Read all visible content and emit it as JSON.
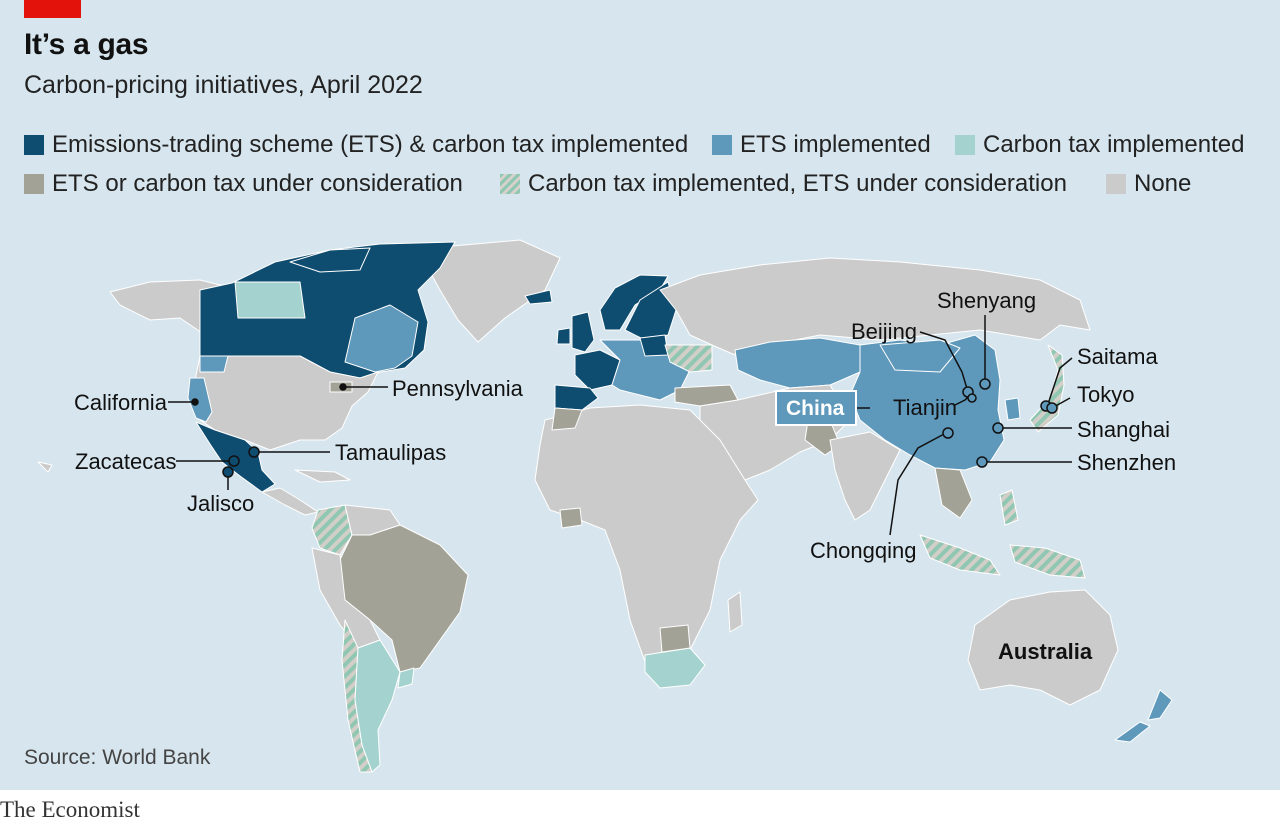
{
  "title": "It’s a gas",
  "subtitle": "Carbon-pricing initiatives, April 2022",
  "colors": {
    "ets_and_tax": "#0e4c70",
    "ets": "#5e98bb",
    "tax": "#a4d3cf",
    "consideration": "#a3a297",
    "tax_ets_consideration_stripe": "#8fc7b3",
    "none": "#cbcbcb",
    "background": "#d7e6ee",
    "accent_red": "#e3120b"
  },
  "legend": [
    {
      "label": "Emissions-trading scheme (ETS) & carbon tax implemented",
      "color": "#0e4c70"
    },
    {
      "label": "ETS implemented",
      "color": "#5e98bb"
    },
    {
      "label": "Carbon tax implemented",
      "color": "#a4d3cf"
    },
    {
      "label": "ETS or carbon tax under consideration",
      "color": "#a3a297"
    },
    {
      "label": "Carbon tax implemented, ETS under consideration",
      "color": "striped"
    },
    {
      "label": "None",
      "color": "#cbcbcb"
    }
  ],
  "labels": {
    "california": "California",
    "pennsylvania": "Pennsylvania",
    "zacatecas": "Zacatecas",
    "tamaulipas": "Tamaulipas",
    "jalisco": "Jalisco",
    "beijing": "Beijing",
    "shenyang": "Shenyang",
    "saitama": "Saitama",
    "tokyo": "Tokyo",
    "china": "China",
    "tianjin": "Tianjin",
    "shanghai": "Shanghai",
    "shenzhen": "Shenzhen",
    "chongqing": "Chongqing",
    "australia": "Australia"
  },
  "source": "Source: World Bank",
  "brand": "The Economist"
}
